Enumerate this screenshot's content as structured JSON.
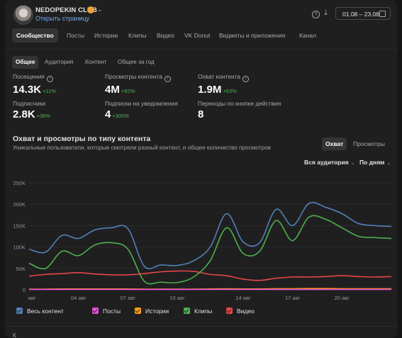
{
  "header": {
    "club_name": "NEDOPEKIN CLUB",
    "open_page": "Открыть страницу",
    "date_range": "01.08 – 23.08"
  },
  "tabs": [
    {
      "label": "Сообщество",
      "active": true
    },
    {
      "label": "Посты",
      "active": false
    },
    {
      "label": "Истории",
      "active": false
    },
    {
      "label": "Клипы",
      "active": false
    },
    {
      "label": "Видео",
      "active": false
    },
    {
      "label": "VK Donut",
      "active": false
    },
    {
      "label": "Виджеты и приложения",
      "active": false
    },
    {
      "label": "Канал",
      "active": false
    }
  ],
  "subtabs": [
    {
      "label": "Общее",
      "active": true
    },
    {
      "label": "Аудитория",
      "active": false
    },
    {
      "label": "Контент",
      "active": false
    },
    {
      "label": "Общее за год",
      "active": false
    }
  ],
  "metrics": [
    {
      "label": "Посещения",
      "value": "14.3K",
      "delta": "+11%",
      "info": true
    },
    {
      "label": "Просмотры контента",
      "value": "4M",
      "delta": "+92%",
      "info": true
    },
    {
      "label": "Охват контента",
      "value": "1.9M",
      "delta": "+63%",
      "info": true
    },
    {
      "label": "Подписчики",
      "value": "2.8K",
      "delta": "+36%",
      "info": false
    },
    {
      "label": "Подписки на уведомления",
      "value": "4",
      "delta": "+300%",
      "info": false
    },
    {
      "label": "Переходы по кнопке действия",
      "value": "8",
      "delta": "",
      "info": false
    }
  ],
  "chart_section": {
    "title": "Охват и просмотры по типу контента",
    "subtitle": "Уникальные пользователи, которые смотрели разный контент, и общее количество просмотров",
    "toggle": [
      {
        "label": "Охват",
        "active": true
      },
      {
        "label": "Просмотры",
        "active": false
      }
    ],
    "audience_filter": "Вся аудитория",
    "period_filter": "По дням",
    "bottom_hint": "К"
  },
  "colors": {
    "all": "#5181b8",
    "posts": "#e64fd9",
    "stories": "#ffa000",
    "clips": "#4bb34b",
    "video": "#e64646"
  },
  "chart_data": {
    "type": "line",
    "x": [
      "01 авг",
      "02 авг",
      "03 авг",
      "04 авг",
      "05 авг",
      "06 авг",
      "07 авг",
      "08 авг",
      "09 авг",
      "10 авг",
      "11 авг",
      "12 авг",
      "13 авг",
      "14 авг",
      "15 авг",
      "16 авг",
      "17 авг",
      "18 авг",
      "19 авг",
      "20 авг",
      "21 авг",
      "22 авг",
      "23 авг"
    ],
    "x_tick_labels": [
      "авг",
      "04 авг",
      "07 авг",
      "10 авг",
      "14 авг",
      "17 авг",
      "20 авг"
    ],
    "x_tick_indices": [
      0,
      3,
      6,
      9,
      13,
      16,
      19
    ],
    "ylim": [
      0,
      250000
    ],
    "y_ticks": [
      0,
      50000,
      100000,
      150000,
      200000,
      250000
    ],
    "y_tick_labels": [
      "0",
      "50K",
      "100K",
      "150K",
      "200K",
      "250K"
    ],
    "grid": true,
    "legend_position": "bottom-left",
    "series": [
      {
        "name": "Весь контент",
        "color_key": "all",
        "values": [
          95000,
          88000,
          127000,
          120000,
          140000,
          145000,
          143000,
          55000,
          58000,
          57000,
          68000,
          100000,
          178000,
          112000,
          110000,
          188000,
          150000,
          202000,
          193000,
          178000,
          155000,
          150000,
          148000
        ]
      },
      {
        "name": "Посты",
        "color_key": "posts",
        "values": [
          1000,
          1000,
          1000,
          1000,
          1000,
          1000,
          1000,
          1000,
          1000,
          1000,
          1000,
          1000,
          1000,
          1000,
          1000,
          1000,
          1000,
          1000,
          1000,
          1000,
          1000,
          1000,
          1000
        ]
      },
      {
        "name": "Истории",
        "color_key": "stories",
        "values": [
          1500,
          1500,
          2000,
          2000,
          2000,
          2000,
          2000,
          1500,
          1500,
          1500,
          1500,
          2000,
          2500,
          2000,
          2000,
          2500,
          2500,
          3000,
          3000,
          2500,
          2500,
          2500,
          2500
        ]
      },
      {
        "name": "Клипы",
        "color_key": "clips",
        "values": [
          62000,
          50000,
          90000,
          80000,
          105000,
          110000,
          95000,
          20000,
          18000,
          17000,
          30000,
          68000,
          145000,
          85000,
          90000,
          162000,
          115000,
          170000,
          165000,
          145000,
          125000,
          122000,
          120000
        ]
      },
      {
        "name": "Видео",
        "color_key": "video",
        "values": [
          32000,
          36000,
          38000,
          40000,
          37000,
          35000,
          35000,
          38000,
          42000,
          44000,
          43000,
          36000,
          33000,
          25000,
          22000,
          27000,
          30000,
          30000,
          31000,
          33000,
          31000,
          30000,
          31000
        ]
      }
    ]
  }
}
